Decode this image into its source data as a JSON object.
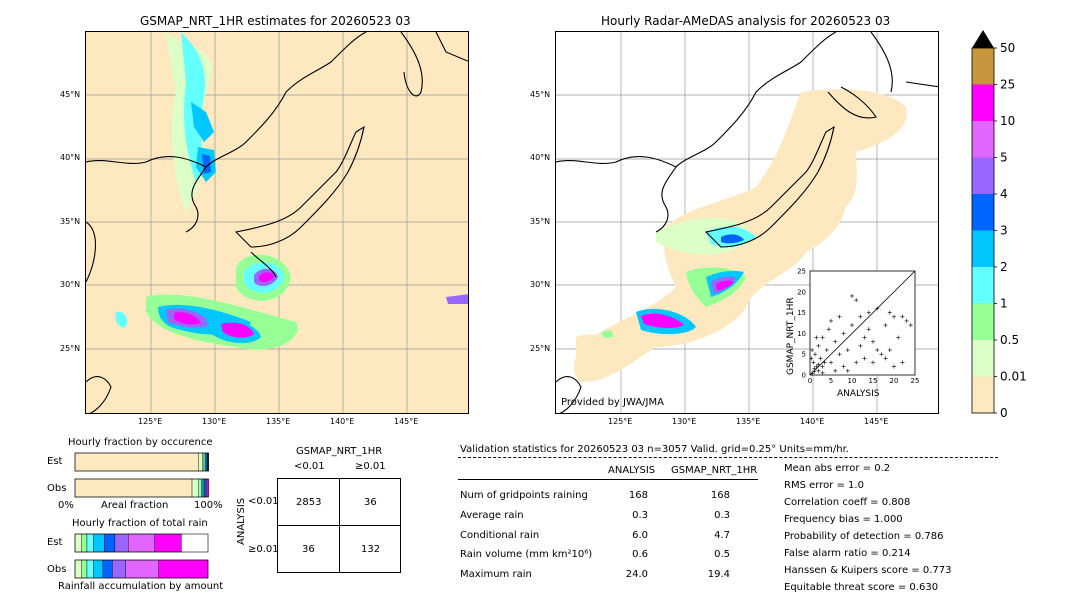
{
  "left_map": {
    "title": "GSMAP_NRT_1HR estimates for 20260523 03",
    "lat_labels": [
      "45°N",
      "40°N",
      "35°N",
      "30°N",
      "25°N"
    ],
    "lon_labels": [
      "125°E",
      "130°E",
      "135°E",
      "140°E",
      "145°E"
    ]
  },
  "right_map": {
    "title": "Hourly Radar-AMeDAS analysis for 20260523 03",
    "lat_labels": [
      "45°N",
      "40°N",
      "35°N",
      "30°N",
      "25°N"
    ],
    "lon_labels": [
      "125°E",
      "130°E",
      "135°E",
      "140°E",
      "145°E"
    ],
    "credit": "Provided by JWA/JMA"
  },
  "colorbar": {
    "labels": [
      "50",
      "25",
      "10",
      "5",
      "4",
      "3",
      "2",
      "1",
      "0.5",
      "0.01",
      "0"
    ],
    "colors": [
      "#c8963c",
      "#ff00ff",
      "#e066ff",
      "#9966ff",
      "#0064ff",
      "#00c8ff",
      "#64ffff",
      "#96ff96",
      "#dcffc8",
      "#fde8c0"
    ]
  },
  "chart_data": [
    {
      "type": "scatter",
      "title": "",
      "xlabel": "ANALYSIS",
      "ylabel": "GSMAP_NRT_1HR",
      "xlim": [
        0,
        25
      ],
      "ylim": [
        0,
        25
      ],
      "ticks": [
        "0",
        "5",
        "10",
        "15",
        "20",
        "25"
      ],
      "points": [
        [
          0.5,
          0.3
        ],
        [
          1,
          0.8
        ],
        [
          1.5,
          2
        ],
        [
          2,
          1
        ],
        [
          0.8,
          3
        ],
        [
          2.5,
          4
        ],
        [
          3,
          2
        ],
        [
          1.2,
          5
        ],
        [
          0.5,
          6
        ],
        [
          2,
          7
        ],
        [
          3,
          9
        ],
        [
          4,
          6
        ],
        [
          5,
          3
        ],
        [
          6,
          8
        ],
        [
          4.5,
          11
        ],
        [
          7,
          5
        ],
        [
          8,
          10
        ],
        [
          9,
          6
        ],
        [
          10,
          19
        ],
        [
          11,
          18
        ],
        [
          12,
          7
        ],
        [
          13,
          4
        ],
        [
          14,
          11
        ],
        [
          15,
          8
        ],
        [
          16,
          16
        ],
        [
          17,
          5
        ],
        [
          18,
          4
        ],
        [
          19,
          15
        ],
        [
          20,
          14
        ],
        [
          21,
          9
        ],
        [
          22,
          14
        ],
        [
          23,
          13
        ],
        [
          24,
          12
        ],
        [
          1,
          1.5
        ],
        [
          2,
          2.5
        ],
        [
          3.5,
          3
        ],
        [
          6,
          1
        ],
        [
          8,
          2
        ],
        [
          10,
          12
        ],
        [
          12,
          14
        ],
        [
          15,
          3
        ],
        [
          18,
          12
        ],
        [
          20,
          2
        ],
        [
          5,
          13
        ],
        [
          7,
          14
        ],
        [
          3,
          0.5
        ],
        [
          1.5,
          9
        ],
        [
          0.3,
          4
        ],
        [
          9,
          1
        ],
        [
          11,
          3
        ],
        [
          13,
          9
        ],
        [
          16,
          6
        ],
        [
          19,
          6
        ],
        [
          22,
          3
        ],
        [
          14,
          15
        ]
      ]
    },
    {
      "type": "bar",
      "title": "Hourly fraction by occurence",
      "categories": [
        "Est",
        "Obs"
      ],
      "xlabel": "Areal fraction",
      "x_ticks": [
        "0%",
        "100%"
      ],
      "series": [
        {
          "values": [
            0.93,
            0.88
          ],
          "color": "#fde8c0"
        },
        {
          "values": [
            0.03,
            0.05
          ],
          "color": "#dcffc8"
        },
        {
          "values": [
            0.01,
            0.02
          ],
          "color": "#96ff96"
        },
        {
          "values": [
            0.01,
            0.01
          ],
          "color": "#64ffff"
        },
        {
          "values": [
            0.01,
            0.01
          ],
          "color": "#00c8ff"
        },
        {
          "values": [
            0.005,
            0.01
          ],
          "color": "#0064ff"
        },
        {
          "values": [
            0.005,
            0.01
          ],
          "color": "#9966ff"
        },
        {
          "values": [
            0.005,
            0.01
          ],
          "color": "#e066ff"
        },
        {
          "values": [
            0.005,
            0.01
          ],
          "color": "#ff00ff"
        }
      ]
    },
    {
      "type": "bar",
      "title": "Hourly fraction of total rain",
      "categories": [
        "Est",
        "Obs"
      ],
      "xlabel": "Rainfall accumulation by amount",
      "series": [
        {
          "values": [
            0.05,
            0.05
          ],
          "color": "#dcffc8"
        },
        {
          "values": [
            0.04,
            0.04
          ],
          "color": "#96ff96"
        },
        {
          "values": [
            0.05,
            0.05
          ],
          "color": "#64ffff"
        },
        {
          "values": [
            0.08,
            0.07
          ],
          "color": "#00c8ff"
        },
        {
          "values": [
            0.08,
            0.07
          ],
          "color": "#0064ff"
        },
        {
          "values": [
            0.1,
            0.1
          ],
          "color": "#9966ff"
        },
        {
          "values": [
            0.2,
            0.25
          ],
          "color": "#e066ff"
        },
        {
          "values": [
            0.2,
            0.37
          ],
          "color": "#ff00ff"
        }
      ]
    }
  ],
  "contingency": {
    "title": "GSMAP_NRT_1HR",
    "col_labels": [
      "<0.01",
      "≥0.01"
    ],
    "row_axis": "ANALYSIS",
    "row_labels": [
      "<0.01",
      "≥0.01"
    ],
    "cells": [
      "2853",
      "36",
      "36",
      "132"
    ]
  },
  "validation": {
    "header": "Validation statistics for 20260523 03  n=3057 Valid. grid=0.25°  Units=mm/hr.",
    "col_analysis": "ANALYSIS",
    "col_gsmap": "GSMAP_NRT_1HR",
    "rows": [
      {
        "label": "Num of gridpoints raining",
        "a": "168",
        "g": "168"
      },
      {
        "label": "Average rain",
        "a": "0.3",
        "g": "0.3"
      },
      {
        "label": "Conditional rain",
        "a": "6.0",
        "g": "4.7"
      },
      {
        "label": "Rain volume (mm km²10⁶)",
        "a": "0.6",
        "g": "0.5"
      },
      {
        "label": "Maximum rain",
        "a": "24.0",
        "g": "19.4"
      }
    ],
    "scores": [
      "Mean abs error =    0.2",
      "RMS error =    1.0",
      "Correlation coeff =  0.808",
      "Frequency bias =  1.000",
      "Probability of detection =  0.786",
      "False alarm ratio =  0.214",
      "Hanssen & Kuipers score =  0.773",
      "Equitable threat score =  0.630"
    ]
  }
}
